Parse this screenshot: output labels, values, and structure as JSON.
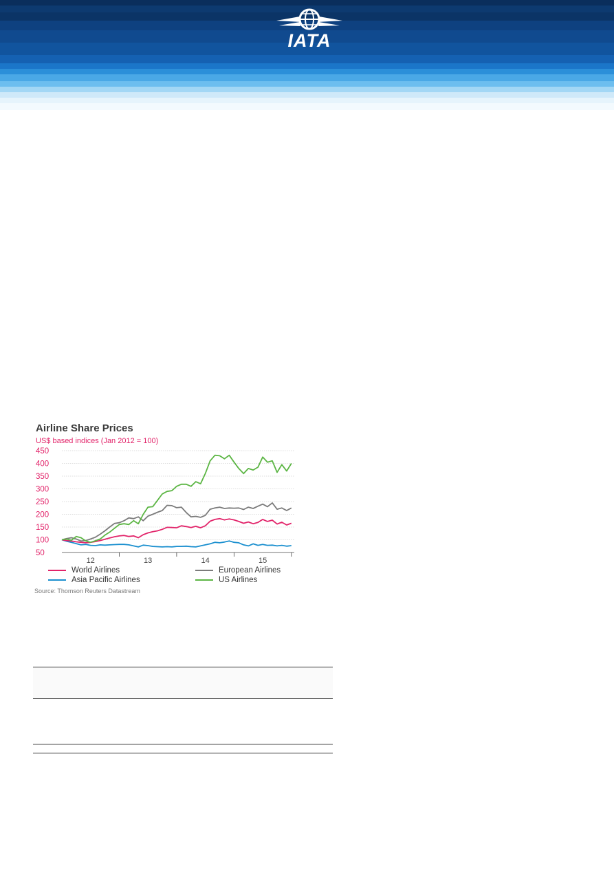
{
  "header": {
    "logo_text": "IATA"
  },
  "colors": {
    "world": "#e2246a",
    "european": "#7b7b7b",
    "asia_pacific": "#1a8fcf",
    "us": "#5bb543",
    "subtitle": "#e2246a"
  },
  "chart_data": {
    "type": "line",
    "title": "Airline Share Prices",
    "subtitle": "US$ based indices (Jan 2012 = 100)",
    "xlabel": "",
    "ylabel": "",
    "ylim": [
      50,
      450
    ],
    "yticks": [
      450,
      400,
      350,
      300,
      250,
      200,
      150,
      100,
      50
    ],
    "xticks": [
      {
        "label": "12",
        "position": 2012.5
      },
      {
        "label": "13",
        "position": 2013.5
      },
      {
        "label": "14",
        "position": 2014.5
      },
      {
        "label": "15",
        "position": 2015.5
      }
    ],
    "xlim": [
      2012.0,
      2016.05
    ],
    "grid": true,
    "legend_placement": "bottom",
    "series": [
      {
        "name": "World Airlines",
        "color": "#e2246a",
        "x": [
          2012.0,
          2012.083,
          2012.167,
          2012.25,
          2012.333,
          2012.417,
          2012.5,
          2012.583,
          2012.667,
          2012.75,
          2012.833,
          2012.917,
          2013.0,
          2013.083,
          2013.167,
          2013.25,
          2013.333,
          2013.417,
          2013.5,
          2013.583,
          2013.667,
          2013.75,
          2013.833,
          2013.917,
          2014.0,
          2014.083,
          2014.167,
          2014.25,
          2014.333,
          2014.417,
          2014.5,
          2014.583,
          2014.667,
          2014.75,
          2014.833,
          2014.917,
          2015.0,
          2015.083,
          2015.167,
          2015.25,
          2015.333,
          2015.417,
          2015.5,
          2015.583,
          2015.667,
          2015.75,
          2015.833,
          2015.917,
          2016.0
        ],
        "values": [
          100,
          97,
          95,
          92,
          90,
          88,
          90,
          93,
          97,
          102,
          107,
          112,
          115,
          117,
          113,
          115,
          108,
          120,
          127,
          132,
          135,
          141,
          149,
          148,
          147,
          155,
          152,
          148,
          153,
          147,
          155,
          173,
          180,
          183,
          178,
          182,
          178,
          172,
          165,
          170,
          163,
          168,
          180,
          172,
          177,
          162,
          169,
          158,
          165
        ]
      },
      {
        "name": "European Airlines",
        "color": "#7b7b7b",
        "x": [
          2012.0,
          2012.083,
          2012.167,
          2012.25,
          2012.333,
          2012.417,
          2012.5,
          2012.583,
          2012.667,
          2012.75,
          2012.833,
          2012.917,
          2013.0,
          2013.083,
          2013.167,
          2013.25,
          2013.333,
          2013.417,
          2013.5,
          2013.583,
          2013.667,
          2013.75,
          2013.833,
          2013.917,
          2014.0,
          2014.083,
          2014.167,
          2014.25,
          2014.333,
          2014.417,
          2014.5,
          2014.583,
          2014.667,
          2014.75,
          2014.833,
          2014.917,
          2015.0,
          2015.083,
          2015.167,
          2015.25,
          2015.333,
          2015.417,
          2015.5,
          2015.583,
          2015.667,
          2015.75,
          2015.833,
          2015.917,
          2016.0
        ],
        "values": [
          100,
          105,
          108,
          103,
          95,
          97,
          103,
          110,
          122,
          135,
          150,
          164,
          167,
          175,
          186,
          183,
          190,
          175,
          193,
          200,
          208,
          215,
          235,
          234,
          226,
          228,
          207,
          190,
          192,
          188,
          196,
          220,
          225,
          228,
          223,
          225,
          224,
          225,
          219,
          228,
          223,
          232,
          240,
          230,
          245,
          220,
          225,
          215,
          225
        ]
      },
      {
        "name": "Asia Pacific Airlines",
        "color": "#1a8fcf",
        "x": [
          2012.0,
          2012.083,
          2012.167,
          2012.25,
          2012.333,
          2012.417,
          2012.5,
          2012.583,
          2012.667,
          2012.75,
          2012.833,
          2012.917,
          2013.0,
          2013.083,
          2013.167,
          2013.25,
          2013.333,
          2013.417,
          2013.5,
          2013.583,
          2013.667,
          2013.75,
          2013.833,
          2013.917,
          2014.0,
          2014.083,
          2014.167,
          2014.25,
          2014.333,
          2014.417,
          2014.5,
          2014.583,
          2014.667,
          2014.75,
          2014.833,
          2014.917,
          2015.0,
          2015.083,
          2015.167,
          2015.25,
          2015.333,
          2015.417,
          2015.5,
          2015.583,
          2015.667,
          2015.75,
          2015.833,
          2015.917,
          2016.0
        ],
        "values": [
          100,
          94,
          90,
          85,
          80,
          82,
          78,
          77,
          80,
          79,
          80,
          81,
          82,
          82,
          80,
          76,
          72,
          79,
          77,
          74,
          73,
          72,
          73,
          72,
          74,
          74,
          75,
          73,
          72,
          76,
          80,
          84,
          90,
          88,
          91,
          95,
          90,
          88,
          80,
          76,
          84,
          78,
          82,
          78,
          79,
          76,
          78,
          75,
          77
        ]
      },
      {
        "name": "US Airlines",
        "color": "#5bb543",
        "x": [
          2012.0,
          2012.083,
          2012.167,
          2012.25,
          2012.333,
          2012.417,
          2012.5,
          2012.583,
          2012.667,
          2012.75,
          2012.833,
          2012.917,
          2013.0,
          2013.083,
          2013.167,
          2013.25,
          2013.333,
          2013.417,
          2013.5,
          2013.583,
          2013.667,
          2013.75,
          2013.833,
          2013.917,
          2014.0,
          2014.083,
          2014.167,
          2014.25,
          2014.333,
          2014.417,
          2014.5,
          2014.583,
          2014.667,
          2014.75,
          2014.833,
          2014.917,
          2015.0,
          2015.083,
          2015.167,
          2015.25,
          2015.333,
          2015.417,
          2015.5,
          2015.583,
          2015.667,
          2015.75,
          2015.833,
          2015.917,
          2016.0
        ],
        "values": [
          100,
          103,
          98,
          113,
          108,
          95,
          90,
          96,
          103,
          118,
          130,
          145,
          160,
          163,
          160,
          175,
          163,
          200,
          228,
          230,
          255,
          280,
          290,
          293,
          310,
          318,
          318,
          310,
          328,
          320,
          360,
          410,
          432,
          430,
          418,
          432,
          405,
          380,
          360,
          380,
          374,
          385,
          425,
          405,
          410,
          365,
          395,
          370,
          400
        ]
      }
    ],
    "source": "Source: Thomson Reuters Datastream"
  }
}
